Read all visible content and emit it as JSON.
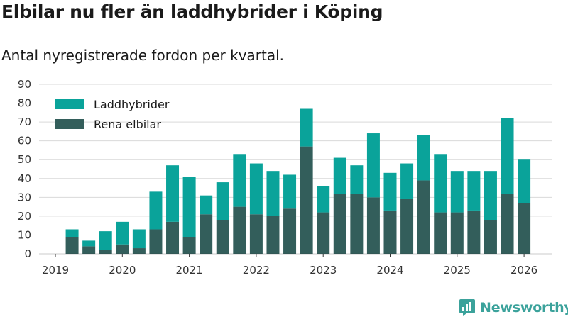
{
  "header": {
    "title": "Elbilar nu fler än laddhybrider i Köping",
    "subtitle": "Antal nyregistrerade fordon per kvartal."
  },
  "brand": {
    "name": "Newsworthy",
    "logo_icon": "newsworthy-bar-chart-icon"
  },
  "colors": {
    "phev": "#0aa39a",
    "bev": "#335e5b",
    "grid": "#d9d9d9",
    "axis": "#333333",
    "brand": "#3ba29b"
  },
  "chart_data": {
    "type": "bar",
    "stacked": true,
    "title": "Elbilar nu fler än laddhybrider i Köping",
    "subtitle": "Antal nyregistrerade fordon per kvartal.",
    "xlabel": "",
    "ylabel": "",
    "ylim": [
      0,
      90
    ],
    "yticks": [
      0,
      10,
      20,
      30,
      40,
      50,
      60,
      70,
      80,
      90
    ],
    "xlim": [
      2019,
      2026.5
    ],
    "xticks": [
      2019,
      2020,
      2021,
      2022,
      2023,
      2024,
      2025,
      2026
    ],
    "grid": true,
    "legend_position": "top-left",
    "x": [
      2019.25,
      2019.5,
      2019.75,
      2020.0,
      2020.25,
      2020.5,
      2020.75,
      2021.0,
      2021.25,
      2021.5,
      2021.75,
      2022.0,
      2022.25,
      2022.5,
      2022.75,
      2023.0,
      2023.25,
      2023.5,
      2023.75,
      2024.0,
      2024.25,
      2024.5,
      2024.75,
      2025.0,
      2025.25,
      2025.5,
      2025.75,
      2026.0
    ],
    "series": [
      {
        "name": "Rena elbilar",
        "color": "#335e5b",
        "values": [
          9,
          4,
          2,
          5,
          3,
          13,
          17,
          9,
          21,
          18,
          25,
          21,
          20,
          24,
          57,
          22,
          32,
          32,
          30,
          23,
          29,
          39,
          22,
          22,
          23,
          18,
          32,
          27
        ]
      },
      {
        "name": "Laddhybrider",
        "color": "#0aa39a",
        "values": [
          4,
          3,
          10,
          12,
          10,
          20,
          30,
          32,
          10,
          20,
          28,
          27,
          24,
          18,
          20,
          14,
          19,
          15,
          34,
          20,
          19,
          24,
          31,
          22,
          21,
          26,
          40,
          23
        ]
      }
    ]
  }
}
